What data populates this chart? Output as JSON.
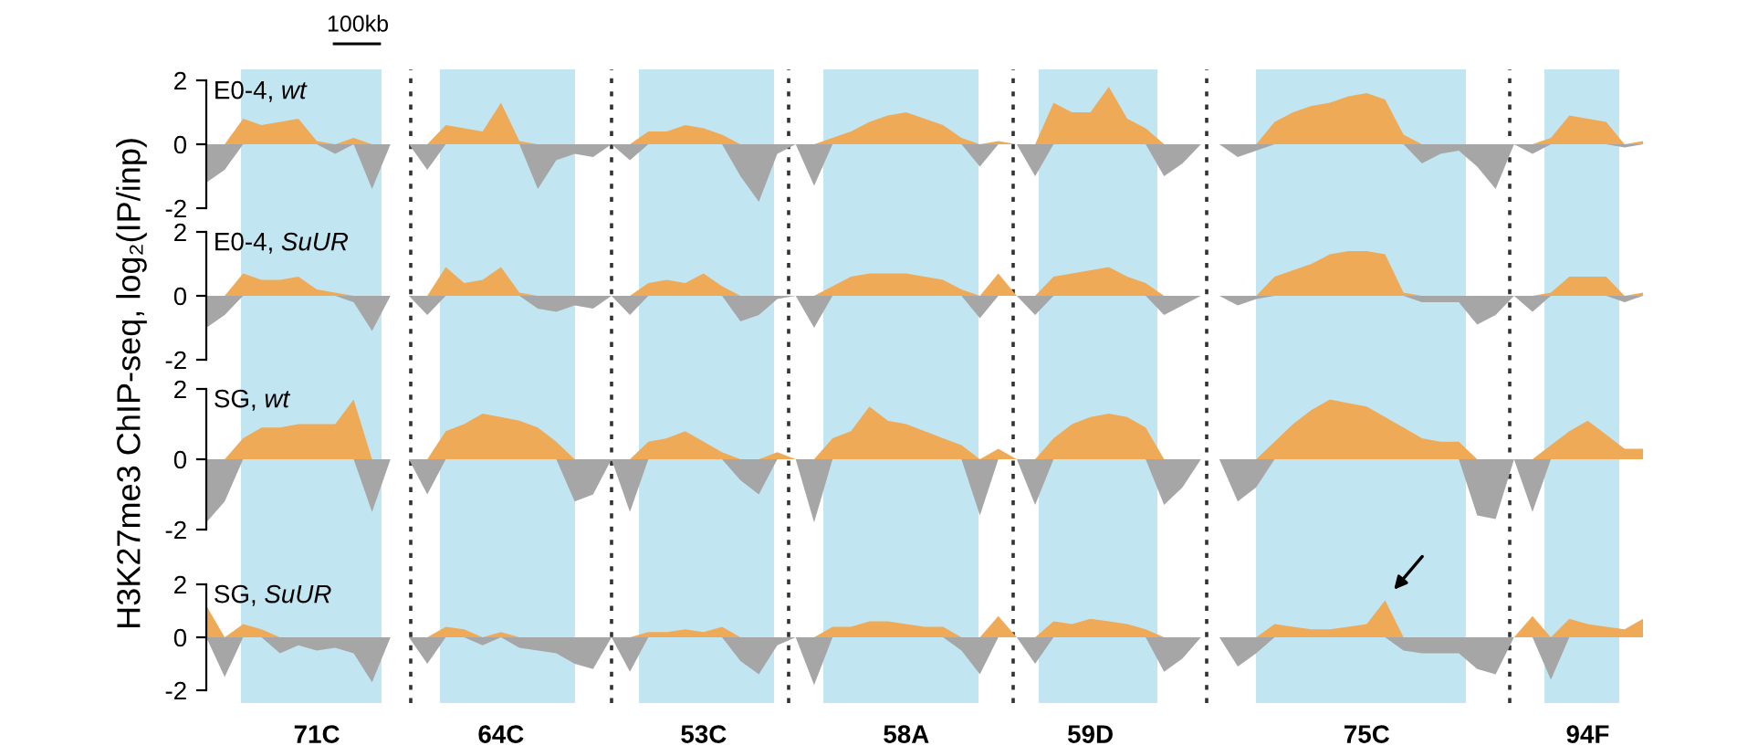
{
  "chart_data": [
    {
      "type": "area",
      "title": "E0-4, wt",
      "ylabel": "H3K27me3 ChIP-seq, log₂(IP/inp)",
      "annotations": [
        "100kb"
      ],
      "tick_labels": "y",
      "ylim": [
        -2,
        2
      ],
      "yticks": [
        -2,
        0,
        2
      ],
      "categories": [
        null,
        null,
        null,
        null,
        null,
        null,
        null,
        null,
        null,
        null,
        null,
        null,
        null,
        null,
        null,
        null,
        null,
        null,
        null,
        null,
        null,
        null,
        null,
        null,
        null,
        null,
        null,
        null,
        null,
        null,
        null,
        null,
        null,
        null,
        null,
        null,
        null,
        null,
        null,
        null,
        null,
        null,
        null,
        null,
        null,
        null,
        null,
        null,
        null,
        null,
        null,
        null,
        null,
        null,
        null,
        null,
        null,
        null,
        null,
        null,
        null,
        null,
        null,
        null,
        null,
        null,
        null,
        null,
        null,
        null,
        null,
        null,
        null,
        null,
        null,
        null,
        null,
        null,
        null
      ],
      "series": [
        {
          "color": "#efaa58",
          "values": [
            0,
            0,
            0.8,
            0.6,
            0.7,
            0.8,
            0.1,
            0,
            0.2,
            0,
            null,
            null,
            0,
            0.6,
            0.5,
            0.4,
            1.3,
            0.1,
            0,
            0,
            0,
            0,
            null,
            0,
            0.4,
            0.4,
            0.6,
            0.5,
            0.3,
            0,
            0,
            0,
            null,
            0,
            0.2,
            0.4,
            0.7,
            0.9,
            1.0,
            0.8,
            0.6,
            0.2,
            0,
            0.1,
            null,
            0,
            1.3,
            1.0,
            1.0,
            1.8,
            0.8,
            0.5,
            0,
            0,
            null,
            null,
            0,
            0,
            0.7,
            1.0,
            1.2,
            1.3,
            1.5,
            1.6,
            1.4,
            0.3,
            0,
            0,
            0,
            0,
            0,
            null,
            0,
            0.2,
            0.9,
            0.8,
            0.7,
            0,
            0.1
          ]
        },
        {
          "color": "#a6a6a6",
          "values": [
            -1.2,
            -0.8,
            0,
            0,
            0,
            0,
            0,
            -0.3,
            0,
            -1.4,
            null,
            null,
            -0.8,
            0,
            0,
            0,
            0,
            0,
            -1.4,
            -0.5,
            -0.3,
            -0.4,
            null,
            -0.5,
            0,
            0,
            0,
            0,
            0,
            -1.0,
            -1.8,
            -0.3,
            null,
            -1.3,
            0,
            0,
            0,
            0,
            0,
            0,
            0,
            0,
            -0.7,
            0,
            null,
            -1.0,
            0,
            0,
            0,
            0,
            0,
            0,
            -1.0,
            -0.6,
            null,
            null,
            -0.4,
            -0.2,
            0,
            0,
            0,
            0,
            0,
            0,
            0,
            0,
            -0.6,
            -0.3,
            -0.2,
            -0.7,
            -1.4,
            null,
            -0.3,
            0,
            0,
            0,
            0,
            -0.1,
            0
          ]
        }
      ]
    },
    {
      "type": "area",
      "title": "E0-4, SuUR",
      "tick_labels": "y",
      "ylim": [
        -2,
        2
      ],
      "yticks": [
        -2,
        0,
        2
      ],
      "categories": [
        null,
        null,
        null,
        null,
        null,
        null,
        null,
        null,
        null,
        null,
        null,
        null,
        null,
        null,
        null,
        null,
        null,
        null,
        null,
        null,
        null,
        null,
        null,
        null,
        null,
        null,
        null,
        null,
        null,
        null,
        null,
        null,
        null,
        null,
        null,
        null,
        null,
        null,
        null,
        null,
        null,
        null,
        null,
        null,
        null,
        null,
        null,
        null,
        null,
        null,
        null,
        null,
        null,
        null,
        null,
        null,
        null,
        null,
        null,
        null,
        null,
        null,
        null,
        null,
        null,
        null,
        null,
        null,
        null,
        null,
        null,
        null,
        null,
        null,
        null,
        null,
        null,
        null,
        null
      ],
      "series": [
        {
          "color": "#efaa58",
          "values": [
            0,
            0,
            0.7,
            0.5,
            0.5,
            0.6,
            0.2,
            0.1,
            0,
            0,
            null,
            null,
            0,
            0.9,
            0.4,
            0.5,
            0.9,
            0.1,
            0,
            0,
            0,
            0,
            null,
            0,
            0.4,
            0.5,
            0.4,
            0.7,
            0.3,
            0,
            0,
            0,
            null,
            0,
            0.3,
            0.6,
            0.7,
            0.7,
            0.7,
            0.6,
            0.5,
            0.2,
            0,
            0.7,
            null,
            0,
            0.6,
            0.7,
            0.8,
            0.9,
            0.6,
            0.4,
            0,
            0,
            null,
            null,
            0,
            0,
            0.6,
            0.8,
            1.0,
            1.3,
            1.4,
            1.4,
            1.3,
            0.1,
            0,
            0,
            0,
            0,
            0,
            null,
            0,
            0.1,
            0.6,
            0.6,
            0.6,
            0,
            0.1
          ]
        },
        {
          "color": "#a6a6a6",
          "values": [
            -1.0,
            -0.6,
            0,
            0,
            0,
            0,
            0,
            0,
            -0.2,
            -1.1,
            null,
            null,
            -0.6,
            0,
            0,
            0,
            0,
            0,
            -0.4,
            -0.5,
            -0.3,
            -0.4,
            null,
            -0.6,
            0,
            0,
            0,
            0,
            0,
            -0.8,
            -0.6,
            -0.1,
            null,
            -1.0,
            0,
            0,
            0,
            0,
            0,
            0,
            0,
            0,
            -0.7,
            0,
            null,
            -0.6,
            0,
            0,
            0,
            0,
            0,
            0,
            -0.6,
            -0.3,
            null,
            null,
            -0.3,
            -0.1,
            0,
            0,
            0,
            0,
            0,
            0,
            0,
            0,
            -0.2,
            -0.2,
            -0.2,
            -0.9,
            -0.6,
            null,
            -0.5,
            0,
            0,
            0,
            0,
            -0.2,
            0
          ]
        }
      ]
    },
    {
      "type": "area",
      "title": "SG, wt",
      "tick_labels": "y",
      "ylim": [
        -2,
        2
      ],
      "yticks": [
        -2,
        0,
        2
      ],
      "categories": [
        null,
        null,
        null,
        null,
        null,
        null,
        null,
        null,
        null,
        null,
        null,
        null,
        null,
        null,
        null,
        null,
        null,
        null,
        null,
        null,
        null,
        null,
        null,
        null,
        null,
        null,
        null,
        null,
        null,
        null,
        null,
        null,
        null,
        null,
        null,
        null,
        null,
        null,
        null,
        null,
        null,
        null,
        null,
        null,
        null,
        null,
        null,
        null,
        null,
        null,
        null,
        null,
        null,
        null,
        null,
        null,
        null,
        null,
        null,
        null,
        null,
        null,
        null,
        null,
        null,
        null,
        null,
        null,
        null,
        null,
        null,
        null,
        null,
        null,
        null,
        null,
        null,
        null,
        null
      ],
      "series": [
        {
          "color": "#efaa58",
          "values": [
            0,
            0,
            0.6,
            0.9,
            0.9,
            1.0,
            1.0,
            1.0,
            1.7,
            0,
            null,
            null,
            0,
            0.8,
            1.0,
            1.3,
            1.2,
            1.1,
            0.9,
            0.5,
            0,
            0,
            null,
            0,
            0.5,
            0.6,
            0.8,
            0.5,
            0.2,
            0,
            0,
            0.2,
            null,
            0,
            0.6,
            0.8,
            1.5,
            1.1,
            1.0,
            0.8,
            0.6,
            0.4,
            0,
            0.3,
            null,
            0,
            0.6,
            1.0,
            1.2,
            1.3,
            1.2,
            0.9,
            0,
            0,
            null,
            null,
            0,
            0,
            0.5,
            1.0,
            1.4,
            1.7,
            1.6,
            1.5,
            1.2,
            0.9,
            0.6,
            0.5,
            0.5,
            0,
            0,
            null,
            0,
            0.4,
            0.8,
            1.1,
            0.7,
            0.3,
            0.3
          ]
        },
        {
          "color": "#a6a6a6",
          "values": [
            -1.8,
            -1.2,
            0,
            0,
            0,
            0,
            0,
            0,
            0,
            -1.5,
            null,
            null,
            -1.0,
            0,
            0,
            0,
            0,
            0,
            0,
            0,
            -1.2,
            -1.0,
            null,
            -1.5,
            0,
            0,
            0,
            0,
            0,
            -0.6,
            -1.0,
            0,
            null,
            -1.8,
            0,
            0,
            0,
            0,
            0,
            0,
            0,
            0,
            -1.6,
            0,
            null,
            -1.3,
            0,
            0,
            0,
            0,
            0,
            0,
            -1.3,
            -0.8,
            null,
            null,
            -1.2,
            -0.8,
            0,
            0,
            0,
            0,
            0,
            0,
            0,
            0,
            0,
            0,
            0,
            -1.6,
            -1.7,
            null,
            -1.5,
            0,
            0,
            0,
            0,
            0,
            0
          ]
        }
      ]
    },
    {
      "type": "area",
      "title": "SG, SuUR",
      "ylim": [
        -2,
        2
      ],
      "yticks": [
        -2,
        0,
        2
      ],
      "categories": [
        null,
        null,
        null,
        null,
        null,
        null,
        "71C",
        null,
        null,
        null,
        null,
        null,
        null,
        null,
        null,
        null,
        "64C",
        null,
        null,
        null,
        null,
        null,
        null,
        null,
        null,
        null,
        null,
        "53C",
        null,
        null,
        null,
        null,
        null,
        null,
        null,
        null,
        null,
        null,
        "58A",
        null,
        null,
        null,
        null,
        null,
        null,
        null,
        null,
        null,
        "59D",
        null,
        null,
        null,
        null,
        null,
        null,
        null,
        null,
        null,
        null,
        null,
        null,
        null,
        null,
        "75C",
        null,
        null,
        null,
        null,
        null,
        null,
        null,
        null,
        null,
        null,
        null,
        "94F",
        null,
        null,
        null
      ],
      "series": [
        {
          "color": "#efaa58",
          "values": [
            1.2,
            0,
            0.5,
            0.3,
            0,
            0,
            0,
            0,
            0,
            0,
            null,
            null,
            0,
            0.4,
            0.3,
            0,
            0.2,
            0,
            0,
            0,
            0,
            0,
            null,
            0,
            0.2,
            0.2,
            0.3,
            0.2,
            0.4,
            0,
            0,
            0,
            null,
            0,
            0.4,
            0.4,
            0.6,
            0.6,
            0.5,
            0.4,
            0.4,
            0,
            0,
            0.8,
            null,
            0,
            0.6,
            0.5,
            0.7,
            0.6,
            0.5,
            0.3,
            0,
            0,
            null,
            null,
            0,
            0,
            0.5,
            0.4,
            0.3,
            0.3,
            0.4,
            0.5,
            1.4,
            0,
            0,
            0,
            0,
            0,
            0,
            null,
            0.8,
            0,
            0.7,
            0.5,
            0.4,
            0.3,
            0.7
          ]
        },
        {
          "color": "#a6a6a6",
          "values": [
            0,
            -1.5,
            0,
            0,
            -0.6,
            -0.3,
            -0.5,
            -0.4,
            -0.6,
            -1.7,
            null,
            null,
            -1.0,
            0,
            0,
            -0.3,
            0,
            -0.4,
            -0.5,
            -0.6,
            -1.0,
            -1.2,
            null,
            -1.3,
            0,
            0,
            0,
            0,
            0,
            -0.9,
            -1.4,
            -0.3,
            null,
            -1.8,
            0,
            0,
            0,
            0,
            0,
            0,
            0,
            -0.5,
            -1.4,
            0,
            null,
            -1.0,
            0,
            0,
            0,
            0,
            0,
            0,
            -1.3,
            -0.8,
            null,
            null,
            -1.1,
            -0.6,
            0,
            0,
            0,
            0,
            0,
            0,
            0,
            -0.5,
            -0.6,
            -0.6,
            -0.6,
            -1.2,
            -1.4,
            null,
            0,
            -1.6,
            0,
            0,
            0,
            0,
            0
          ]
        }
      ]
    }
  ]
}
